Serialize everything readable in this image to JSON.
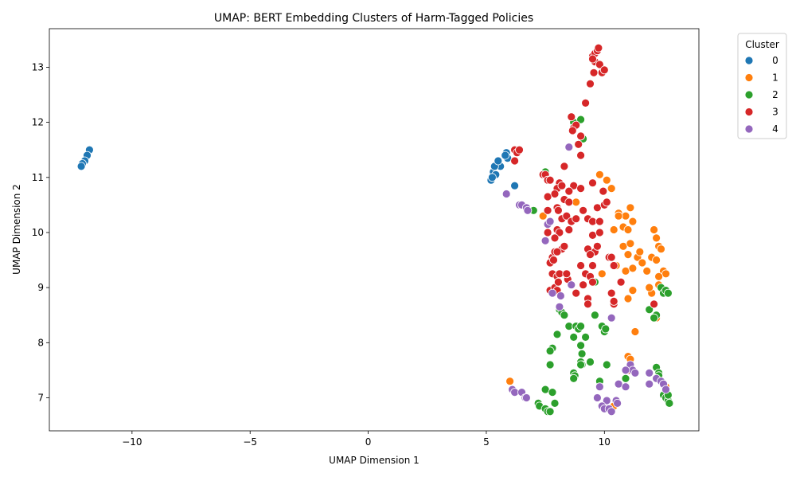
{
  "chart_data": {
    "type": "scatter",
    "title": "UMAP: BERT Embedding Clusters of Harm-Tagged Policies",
    "xlabel": "UMAP Dimension 1",
    "ylabel": "UMAP Dimension 2",
    "xlim": [
      -13.5,
      14.0
    ],
    "ylim": [
      6.4,
      13.7
    ],
    "xticks": [
      -10,
      -5,
      0,
      5,
      10
    ],
    "yticks": [
      7,
      8,
      9,
      10,
      11,
      12,
      13
    ],
    "grid": false,
    "legend": {
      "title": "Cluster",
      "placement": "outside-top-right"
    },
    "series": [
      {
        "name": "0",
        "color": "#1f77b4",
        "points": [
          [
            -11.8,
            11.5
          ],
          [
            -11.9,
            11.4
          ],
          [
            -12.0,
            11.3
          ],
          [
            -12.1,
            11.25
          ],
          [
            -12.15,
            11.2
          ],
          [
            5.3,
            11.1
          ],
          [
            5.4,
            11.05
          ],
          [
            5.5,
            11.25
          ],
          [
            5.6,
            11.2
          ],
          [
            5.85,
            11.45
          ],
          [
            5.9,
            11.35
          ],
          [
            5.35,
            11.2
          ],
          [
            5.2,
            10.95
          ],
          [
            6.2,
            10.85
          ],
          [
            5.5,
            11.3
          ],
          [
            5.8,
            11.4
          ],
          [
            5.25,
            11.0
          ]
        ]
      },
      {
        "name": "1",
        "color": "#ff7f0e",
        "points": [
          [
            7.4,
            10.3
          ],
          [
            8.8,
            10.55
          ],
          [
            9.8,
            11.05
          ],
          [
            10.1,
            10.95
          ],
          [
            10.3,
            10.8
          ],
          [
            10.4,
            10.05
          ],
          [
            10.6,
            10.35
          ],
          [
            10.8,
            10.1
          ],
          [
            10.9,
            10.3
          ],
          [
            11.0,
            10.05
          ],
          [
            11.1,
            10.45
          ],
          [
            11.2,
            10.2
          ],
          [
            9.9,
            9.25
          ],
          [
            10.5,
            9.4
          ],
          [
            10.8,
            9.75
          ],
          [
            10.9,
            9.3
          ],
          [
            11.0,
            9.6
          ],
          [
            11.1,
            9.8
          ],
          [
            11.2,
            9.35
          ],
          [
            11.4,
            9.55
          ],
          [
            11.5,
            9.65
          ],
          [
            11.6,
            9.45
          ],
          [
            11.8,
            9.3
          ],
          [
            12.0,
            9.55
          ],
          [
            12.1,
            10.05
          ],
          [
            12.2,
            9.9
          ],
          [
            12.3,
            9.75
          ],
          [
            12.4,
            9.7
          ],
          [
            12.2,
            9.5
          ],
          [
            12.5,
            9.3
          ],
          [
            12.6,
            9.25
          ],
          [
            12.3,
            9.2
          ],
          [
            11.2,
            8.95
          ],
          [
            11.0,
            8.8
          ],
          [
            12.0,
            8.9
          ],
          [
            12.2,
            8.45
          ],
          [
            11.3,
            8.2
          ],
          [
            11.0,
            7.75
          ],
          [
            11.1,
            7.7
          ],
          [
            12.6,
            7.2
          ],
          [
            6.0,
            7.3
          ],
          [
            10.4,
            6.85
          ],
          [
            10.6,
            10.3
          ],
          [
            12.3,
            9.05
          ],
          [
            11.9,
            9.0
          ]
        ]
      },
      {
        "name": "2",
        "color": "#2ca02c",
        "points": [
          [
            7.0,
            10.4
          ],
          [
            7.5,
            11.1
          ],
          [
            8.7,
            12.0
          ],
          [
            9.0,
            12.05
          ],
          [
            9.1,
            11.7
          ],
          [
            12.4,
            9.0
          ],
          [
            12.5,
            8.9
          ],
          [
            12.6,
            8.95
          ],
          [
            12.7,
            8.9
          ],
          [
            11.9,
            8.6
          ],
          [
            12.2,
            8.5
          ],
          [
            12.1,
            8.45
          ],
          [
            9.6,
            9.1
          ],
          [
            8.1,
            8.6
          ],
          [
            8.2,
            8.55
          ],
          [
            8.3,
            8.5
          ],
          [
            8.5,
            8.3
          ],
          [
            8.7,
            8.1
          ],
          [
            8.8,
            8.3
          ],
          [
            8.9,
            8.25
          ],
          [
            9.0,
            8.3
          ],
          [
            9.2,
            8.1
          ],
          [
            9.6,
            8.5
          ],
          [
            9.9,
            8.3
          ],
          [
            10.0,
            8.2
          ],
          [
            10.05,
            8.25
          ],
          [
            8.0,
            8.15
          ],
          [
            7.8,
            7.9
          ],
          [
            7.7,
            7.85
          ],
          [
            9.0,
            7.95
          ],
          [
            9.05,
            7.8
          ],
          [
            9.0,
            7.65
          ],
          [
            9.05,
            7.6
          ],
          [
            9.4,
            7.65
          ],
          [
            10.1,
            7.6
          ],
          [
            7.7,
            7.6
          ],
          [
            8.7,
            7.45
          ],
          [
            8.75,
            7.4
          ],
          [
            8.7,
            7.35
          ],
          [
            9.0,
            7.6
          ],
          [
            9.8,
            7.3
          ],
          [
            7.5,
            7.15
          ],
          [
            7.8,
            7.1
          ],
          [
            7.9,
            6.9
          ],
          [
            7.2,
            6.9
          ],
          [
            7.25,
            6.85
          ],
          [
            7.5,
            6.8
          ],
          [
            7.6,
            6.75
          ],
          [
            7.7,
            6.75
          ],
          [
            10.3,
            6.75
          ],
          [
            12.2,
            7.55
          ],
          [
            12.3,
            7.45
          ],
          [
            12.3,
            7.4
          ],
          [
            12.5,
            7.05
          ],
          [
            12.6,
            7.0
          ],
          [
            12.7,
            6.95
          ],
          [
            12.75,
            6.9
          ],
          [
            12.7,
            7.05
          ],
          [
            10.9,
            7.35
          ]
        ]
      },
      {
        "name": "3",
        "color": "#d62728",
        "points": [
          [
            9.5,
            13.2
          ],
          [
            9.6,
            13.25
          ],
          [
            9.7,
            13.3
          ],
          [
            9.75,
            13.35
          ],
          [
            9.6,
            13.1
          ],
          [
            9.8,
            13.05
          ],
          [
            9.5,
            13.15
          ],
          [
            9.55,
            12.9
          ],
          [
            9.9,
            12.9
          ],
          [
            10.0,
            12.95
          ],
          [
            9.4,
            12.7
          ],
          [
            9.2,
            12.35
          ],
          [
            8.6,
            12.1
          ],
          [
            8.7,
            11.9
          ],
          [
            8.8,
            11.95
          ],
          [
            9.0,
            11.75
          ],
          [
            8.65,
            11.85
          ],
          [
            8.9,
            11.6
          ],
          [
            9.0,
            11.4
          ],
          [
            6.2,
            11.5
          ],
          [
            6.3,
            11.45
          ],
          [
            6.4,
            11.5
          ],
          [
            6.2,
            11.3
          ],
          [
            8.3,
            11.2
          ],
          [
            7.4,
            11.05
          ],
          [
            7.5,
            11.05
          ],
          [
            7.6,
            10.95
          ],
          [
            7.7,
            10.95
          ],
          [
            8.1,
            10.9
          ],
          [
            8.0,
            10.8
          ],
          [
            8.2,
            10.85
          ],
          [
            8.7,
            10.85
          ],
          [
            8.5,
            10.75
          ],
          [
            9.0,
            10.8
          ],
          [
            9.5,
            10.9
          ],
          [
            9.95,
            10.75
          ],
          [
            7.6,
            10.65
          ],
          [
            7.9,
            10.7
          ],
          [
            8.3,
            10.6
          ],
          [
            8.5,
            10.55
          ],
          [
            7.6,
            10.4
          ],
          [
            8.0,
            10.45
          ],
          [
            8.05,
            10.4
          ],
          [
            8.2,
            10.25
          ],
          [
            8.4,
            10.3
          ],
          [
            8.6,
            10.2
          ],
          [
            8.8,
            10.25
          ],
          [
            9.1,
            10.4
          ],
          [
            9.3,
            10.25
          ],
          [
            9.5,
            10.2
          ],
          [
            9.8,
            10.2
          ],
          [
            9.7,
            10.45
          ],
          [
            10.0,
            10.5
          ],
          [
            10.1,
            10.55
          ],
          [
            7.6,
            10.0
          ],
          [
            8.0,
            10.05
          ],
          [
            8.1,
            10.0
          ],
          [
            8.5,
            10.05
          ],
          [
            9.5,
            9.95
          ],
          [
            9.8,
            10.0
          ],
          [
            8.2,
            9.7
          ],
          [
            8.3,
            9.75
          ],
          [
            7.8,
            9.55
          ],
          [
            7.9,
            9.65
          ],
          [
            8.0,
            9.65
          ],
          [
            9.3,
            9.7
          ],
          [
            9.6,
            9.65
          ],
          [
            9.7,
            9.75
          ],
          [
            7.7,
            9.45
          ],
          [
            7.85,
            9.5
          ],
          [
            10.2,
            9.55
          ],
          [
            10.3,
            9.55
          ],
          [
            9.4,
            9.6
          ],
          [
            10.4,
            9.4
          ],
          [
            7.8,
            9.25
          ],
          [
            8.0,
            9.2
          ],
          [
            8.1,
            9.25
          ],
          [
            8.45,
            9.15
          ],
          [
            8.4,
            9.25
          ],
          [
            9.0,
            9.4
          ],
          [
            9.2,
            9.25
          ],
          [
            9.4,
            9.2
          ],
          [
            9.5,
            9.4
          ],
          [
            9.1,
            9.05
          ],
          [
            9.5,
            9.1
          ],
          [
            8.8,
            8.9
          ],
          [
            7.7,
            8.95
          ],
          [
            7.9,
            9.0
          ],
          [
            8.0,
            8.95
          ],
          [
            8.05,
            9.1
          ],
          [
            9.3,
            8.8
          ],
          [
            9.3,
            8.7
          ],
          [
            10.3,
            8.9
          ],
          [
            10.4,
            8.7
          ],
          [
            10.4,
            8.75
          ],
          [
            10.7,
            9.1
          ],
          [
            11.1,
            7.55
          ],
          [
            11.05,
            7.5
          ],
          [
            12.1,
            8.7
          ],
          [
            7.9,
            9.9
          ]
        ]
      },
      {
        "name": "4",
        "color": "#9467bd",
        "points": [
          [
            8.5,
            11.55
          ],
          [
            5.85,
            10.7
          ],
          [
            6.4,
            10.5
          ],
          [
            6.5,
            10.5
          ],
          [
            6.7,
            10.45
          ],
          [
            6.75,
            10.4
          ],
          [
            7.6,
            10.15
          ],
          [
            7.7,
            10.2
          ],
          [
            7.5,
            9.85
          ],
          [
            8.6,
            9.05
          ],
          [
            8.15,
            8.85
          ],
          [
            7.8,
            8.9
          ],
          [
            8.1,
            8.65
          ],
          [
            10.3,
            8.45
          ],
          [
            11.1,
            7.6
          ],
          [
            11.2,
            7.5
          ],
          [
            11.3,
            7.45
          ],
          [
            10.9,
            7.5
          ],
          [
            11.9,
            7.45
          ],
          [
            12.2,
            7.35
          ],
          [
            11.9,
            7.25
          ],
          [
            12.4,
            7.3
          ],
          [
            12.5,
            7.25
          ],
          [
            10.6,
            7.25
          ],
          [
            10.9,
            7.2
          ],
          [
            9.8,
            7.2
          ],
          [
            12.6,
            7.15
          ],
          [
            6.1,
            7.15
          ],
          [
            6.2,
            7.1
          ],
          [
            6.5,
            7.1
          ],
          [
            6.65,
            7.0
          ],
          [
            6.7,
            7.0
          ],
          [
            9.7,
            7.0
          ],
          [
            10.1,
            6.95
          ],
          [
            10.5,
            6.95
          ],
          [
            10.55,
            6.9
          ],
          [
            9.9,
            6.85
          ],
          [
            10.0,
            6.8
          ],
          [
            10.2,
            6.8
          ],
          [
            10.3,
            6.75
          ]
        ]
      }
    ]
  }
}
